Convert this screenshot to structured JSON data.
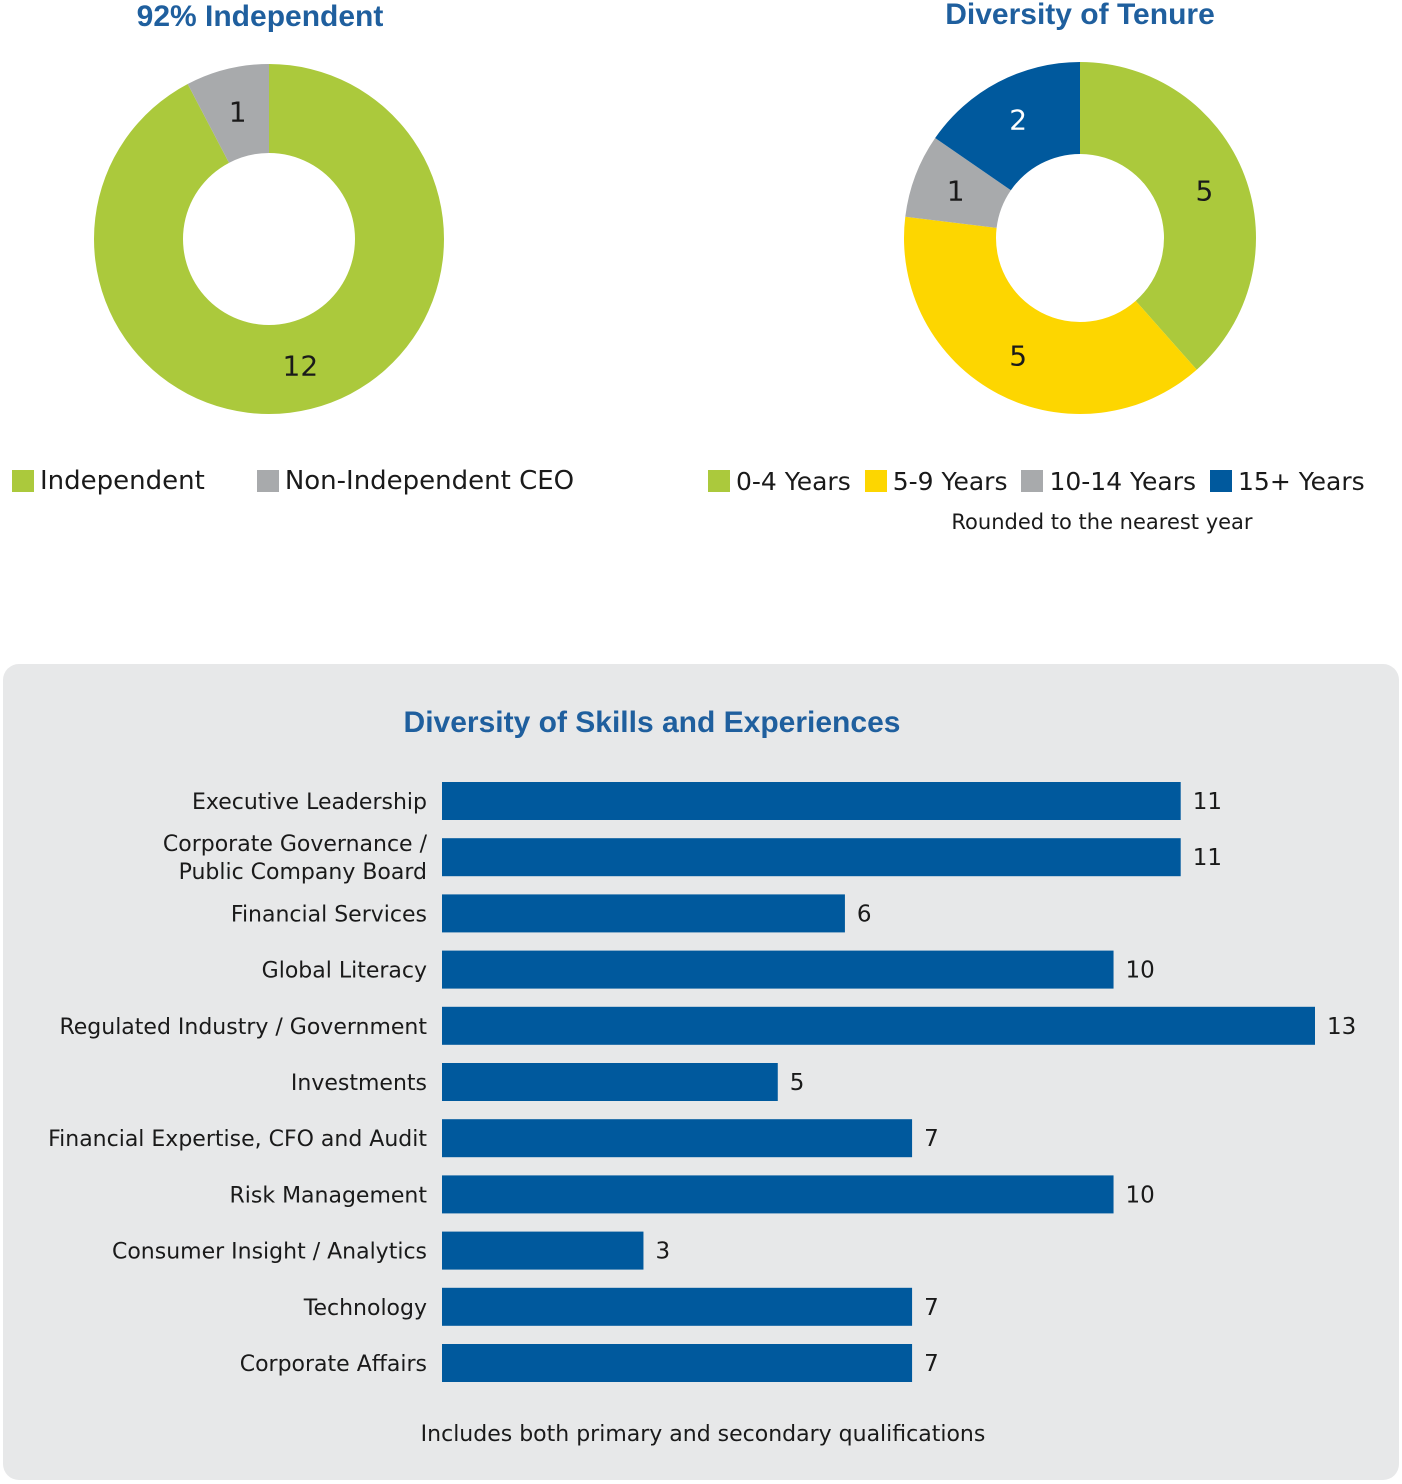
{
  "colors": {
    "green": "#abc93c",
    "gray": "#a8aaac",
    "yellow": "#fdd600",
    "blue": "#00599d",
    "title_blue": "#1f5f9e",
    "panel_bg": "#e7e8e9"
  },
  "chart_data": [
    {
      "type": "pie",
      "title": "92% Independent",
      "donut": true,
      "slices": [
        {
          "label": "Independent",
          "value": 12,
          "color": "#abc93c"
        },
        {
          "label": "Non-Independent CEO",
          "value": 1,
          "color": "#a8aaac"
        }
      ],
      "legend": "bottom"
    },
    {
      "type": "pie",
      "title": "Diversity of Tenure",
      "donut": true,
      "slices": [
        {
          "label": "0-4 Years",
          "value": 5,
          "color": "#abc93c"
        },
        {
          "label": "5-9 Years",
          "value": 5,
          "color": "#fdd600"
        },
        {
          "label": "10-14 Years",
          "value": 1,
          "color": "#a8aaac"
        },
        {
          "label": "15+ Years",
          "value": 2,
          "color": "#00599d"
        }
      ],
      "legend": "bottom",
      "note": "Rounded to the nearest year"
    },
    {
      "type": "bar",
      "orientation": "horizontal",
      "title": "Diversity of Skills and Experiences",
      "categories": [
        "Executive Leadership",
        "Corporate Governance /\nPublic Company Board",
        "Financial Services",
        "Global Literacy",
        "Regulated Industry / Government",
        "Investments",
        "Financial Expertise, CFO and Audit",
        "Risk Management",
        "Consumer Insight / Analytics",
        "Technology",
        "Corporate Affairs"
      ],
      "values": [
        11,
        11,
        6,
        10,
        13,
        5,
        7,
        10,
        3,
        7,
        7
      ],
      "color": "#00599d",
      "xlim": [
        0,
        13
      ],
      "note": "Includes both primary and secondary qualifications"
    }
  ]
}
